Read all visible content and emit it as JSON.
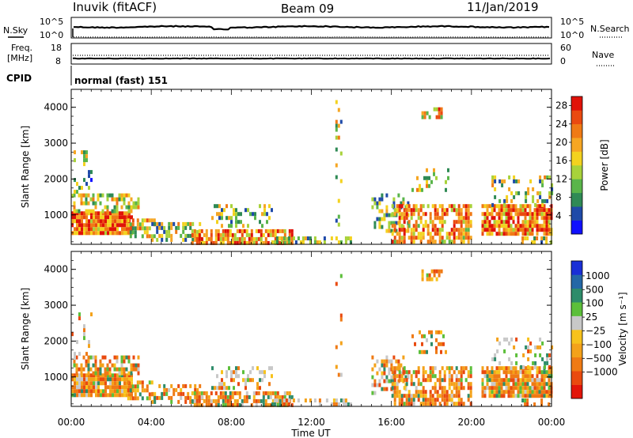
{
  "header": {
    "station": "Inuvik (fitACF)",
    "beam": "Beam 09",
    "date": "11/Jan/2019"
  },
  "top_panels": {
    "sky": {
      "label": "N.Sky",
      "ticks": [
        "10^5",
        "10^0"
      ],
      "right_label": "N.Search",
      "right_ticks": [
        "10^5",
        "10^0"
      ]
    },
    "freq": {
      "label_line1": "Freq.",
      "label_line2": "[MHz]",
      "ticks": [
        "18",
        "8"
      ],
      "right_label": "Nave",
      "right_ticks": [
        "60",
        "0"
      ]
    },
    "cpid": {
      "label": "CPID",
      "text": "normal (fast) 151"
    }
  },
  "chart_data": [
    {
      "type": "heatmap",
      "name": "power",
      "ylabel": "Slant Range [km]",
      "ylim": [
        180,
        4500
      ],
      "yticks": [
        1000,
        2000,
        3000,
        4000
      ],
      "xlim_hours": [
        0,
        24
      ],
      "xticks": [
        "00:00",
        "04:00",
        "08:00",
        "12:00",
        "16:00",
        "20:00",
        "00:00"
      ],
      "colorbar": {
        "label": "Power [dB]",
        "ticks": [
          "4",
          "8",
          "12",
          "16",
          "20",
          "24",
          "28"
        ],
        "colors": [
          "#1010ff",
          "#1f4aa8",
          "#2f8a55",
          "#5ab54a",
          "#a8d23a",
          "#f3d21f",
          "#f6a623",
          "#f07a15",
          "#ea4a10",
          "#e01208"
        ]
      }
    },
    {
      "type": "heatmap",
      "name": "velocity",
      "ylabel": "Slant Range [km]",
      "xlabel": "Time UT",
      "ylim": [
        180,
        4500
      ],
      "yticks": [
        1000,
        2000,
        3000,
        4000
      ],
      "xlim_hours": [
        0,
        24
      ],
      "xticks": [
        "00:00",
        "04:00",
        "08:00",
        "12:00",
        "16:00",
        "20:00",
        "00:00"
      ],
      "colorbar": {
        "label": "Velocity [m s⁻¹]",
        "ticks": [
          "1000",
          "500",
          "100",
          "25",
          "−25",
          "−100",
          "−500",
          "−1000"
        ],
        "colors": [
          "#1a2fd6",
          "#2467a6",
          "#2e8c6a",
          "#5cbf3a",
          "#c8c8c8",
          "#f7c21c",
          "#f4a21a",
          "#ef7a14",
          "#e94a0f",
          "#e21509"
        ]
      }
    }
  ]
}
